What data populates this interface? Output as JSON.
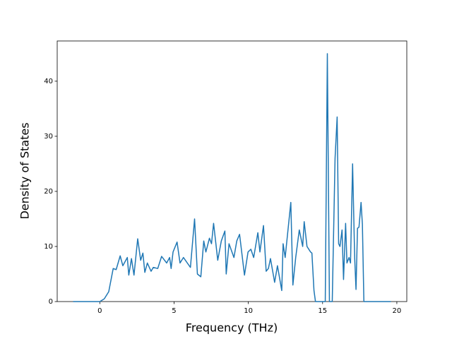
{
  "chart_data": {
    "type": "line",
    "xlabel": "Frequency (THz)",
    "ylabel": "Density of States",
    "x": [
      -1.8,
      -1.0,
      0.0,
      0.3,
      0.6,
      0.9,
      1.1,
      1.37,
      1.55,
      1.85,
      1.95,
      2.13,
      2.3,
      2.55,
      2.75,
      2.9,
      3.03,
      3.2,
      3.45,
      3.6,
      3.9,
      4.16,
      4.5,
      4.7,
      4.8,
      4.93,
      5.2,
      5.4,
      5.63,
      6.1,
      6.38,
      6.57,
      6.8,
      6.998,
      7.14,
      7.38,
      7.52,
      7.66,
      7.94,
      8.18,
      8.42,
      8.51,
      8.7,
      9.03,
      9.22,
      9.41,
      9.74,
      9.98,
      10.17,
      10.36,
      10.64,
      10.78,
      11.02,
      11.2,
      11.35,
      11.49,
      11.77,
      11.96,
      12.25,
      12.34,
      12.48,
      12.86,
      13.0,
      13.19,
      13.43,
      13.66,
      13.76,
      13.95,
      14.19,
      14.28,
      14.42,
      14.52,
      15.18,
      15.32,
      15.46,
      15.65,
      15.84,
      15.98,
      16.08,
      16.17,
      16.31,
      16.41,
      16.55,
      16.64,
      16.78,
      16.88,
      17.02,
      17.16,
      17.25,
      17.35,
      17.45,
      17.59,
      17.68,
      17.78,
      19.6
    ],
    "values": [
      0,
      0,
      0,
      0.5,
      1.8,
      6.0,
      5.8,
      8.3,
      6.5,
      8.0,
      4.8,
      7.8,
      4.8,
      11.4,
      7.5,
      8.8,
      5.3,
      7.0,
      5.5,
      6.2,
      6.0,
      8.2,
      7.0,
      8.0,
      6.0,
      9.0,
      10.8,
      7.0,
      8.0,
      6.2,
      15.0,
      5.0,
      4.5,
      11.0,
      9.0,
      11.5,
      10.5,
      14.2,
      7.5,
      11.0,
      12.8,
      5.0,
      10.5,
      8.0,
      11.0,
      12.2,
      4.8,
      9.0,
      9.5,
      8.0,
      12.5,
      9.0,
      13.8,
      5.5,
      6.0,
      7.8,
      3.5,
      6.5,
      2.0,
      10.5,
      8.0,
      18.0,
      3.0,
      8.0,
      13.0,
      10.0,
      14.5,
      10.0,
      9.0,
      8.8,
      2.0,
      0,
      0,
      45.0,
      0,
      0,
      26.0,
      33.5,
      10.5,
      10.0,
      13.0,
      4.0,
      14.2,
      7.0,
      8.0,
      7.0,
      25.0,
      8.0,
      2.2,
      13.3,
      13.5,
      18.0,
      14.0,
      0,
      0
    ],
    "color": "#1f77b4",
    "xlim": [
      -2.87,
      20.67
    ],
    "xticks": [
      0,
      5,
      10,
      15,
      20
    ],
    "ylim": [
      0,
      47.3
    ],
    "yticks": [
      0,
      10,
      20,
      30,
      40
    ]
  }
}
